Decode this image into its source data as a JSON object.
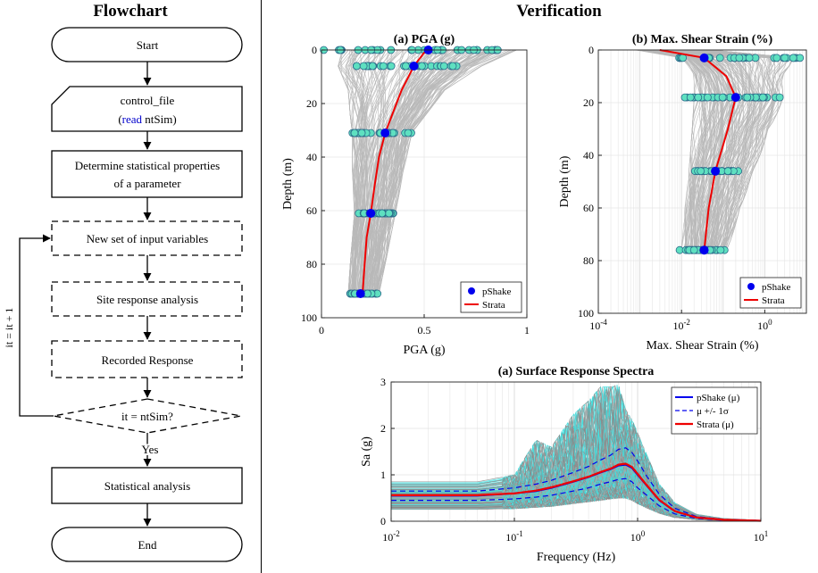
{
  "flowchart": {
    "title": "Flowchart",
    "start": "Start",
    "control_file": "control_file",
    "read_kw": "read",
    "read_var": " ntSim)",
    "determine_line1": "Determine statistical properties",
    "determine_line2": "of a parameter",
    "new_set": "New set of input variables",
    "site_response": "Site response analysis",
    "recorded": "Recorded Response",
    "decision": "it = ntSim?",
    "yes": "Yes",
    "loop_label": "it = it + 1",
    "statistical": "Statistical analysis",
    "end": "End"
  },
  "verification": {
    "title": "Verification"
  },
  "colors": {
    "pshake": "#0000ee",
    "strata": "#ee0000",
    "marker_fill": "#5ee0c0",
    "sim": "#b8b8b8",
    "sim_dark": "#8a8a8a",
    "cyan": "#3ce0e0",
    "keyword": "#0000cc"
  },
  "chart_data": [
    {
      "type": "line",
      "title": "(a) PGA (g)",
      "xlabel": "PGA (g)",
      "ylabel": "Depth (m)",
      "xlim": [
        0,
        1
      ],
      "ylim": [
        0,
        100
      ],
      "y_reversed": true,
      "xticks": [
        "0",
        "0.5",
        "1"
      ],
      "yticks": [
        "0",
        "20",
        "40",
        "60",
        "80",
        "100"
      ],
      "legend": [
        "pShake",
        "Strata"
      ],
      "legend_position": "bottom-right",
      "pshake_mean": {
        "depth": [
          0,
          6,
          31,
          61,
          91
        ],
        "value": [
          0.52,
          0.45,
          0.31,
          0.24,
          0.19
        ]
      },
      "pshake_spread": [
        {
          "depth": 0,
          "min": 0.0,
          "max": 0.86
        },
        {
          "depth": 6,
          "min": 0.15,
          "max": 0.66
        },
        {
          "depth": 31,
          "min": 0.15,
          "max": 0.45
        },
        {
          "depth": 61,
          "min": 0.18,
          "max": 0.35
        },
        {
          "depth": 91,
          "min": 0.14,
          "max": 0.28
        }
      ],
      "strata_mean": {
        "depth": [
          0,
          6,
          15,
          25,
          31,
          40,
          50,
          61,
          70,
          80,
          91
        ],
        "value": [
          0.51,
          0.45,
          0.39,
          0.34,
          0.31,
          0.28,
          0.26,
          0.24,
          0.22,
          0.21,
          0.2
        ]
      },
      "sim_envelope": {
        "depth": [
          0,
          6,
          15,
          25,
          31,
          45,
          61,
          80,
          91
        ],
        "min": [
          0.1,
          0.08,
          0.13,
          0.14,
          0.15,
          0.15,
          0.16,
          0.14,
          0.13
        ],
        "max": [
          0.95,
          0.78,
          0.6,
          0.5,
          0.44,
          0.4,
          0.36,
          0.31,
          0.28
        ]
      }
    },
    {
      "type": "line",
      "title": "(b) Max. Shear Strain (%)",
      "xlabel": "Max. Shear Strain (%)",
      "ylabel": "Depth (m)",
      "xscale": "log",
      "xlim": [
        0.0001,
        10
      ],
      "ylim": [
        0,
        100
      ],
      "y_reversed": true,
      "xticks": [
        "10^-4",
        "10^-2",
        "10^0"
      ],
      "yticks": [
        "0",
        "20",
        "40",
        "60",
        "80",
        "100"
      ],
      "legend": [
        "pShake",
        "Strata"
      ],
      "legend_position": "bottom-right",
      "pshake_mean": {
        "depth": [
          3,
          18,
          46,
          76
        ],
        "value": [
          0.035,
          0.2,
          0.065,
          0.035
        ]
      },
      "pshake_spread": [
        {
          "depth": 3,
          "min": 0.008,
          "max": 7
        },
        {
          "depth": 18,
          "min": 0.012,
          "max": 2.8
        },
        {
          "depth": 46,
          "min": 0.02,
          "max": 0.25
        },
        {
          "depth": 76,
          "min": 0.008,
          "max": 0.11
        }
      ],
      "strata_mean": {
        "depth": [
          0,
          3,
          10,
          18,
          30,
          46,
          60,
          76
        ],
        "value": [
          0.003,
          0.035,
          0.12,
          0.2,
          0.13,
          0.065,
          0.045,
          0.035
        ]
      },
      "sim_envelope": {
        "depth": [
          0,
          3,
          10,
          18,
          30,
          46,
          60,
          76
        ],
        "min": [
          0.0008,
          0.01,
          0.02,
          0.02,
          0.018,
          0.015,
          0.012,
          0.01
        ],
        "max": [
          0.05,
          5,
          2.5,
          2.8,
          1.2,
          0.5,
          0.25,
          0.12
        ]
      }
    },
    {
      "type": "line",
      "title": "(a) Surface Response Spectra",
      "xlabel": "Frequency (Hz)",
      "ylabel": "Sa (g)",
      "xscale": "log",
      "xlim": [
        0.01,
        10
      ],
      "ylim": [
        0,
        3
      ],
      "xticks": [
        "10^-2",
        "10^-1",
        "10^0",
        "10^1"
      ],
      "yticks": [
        "0",
        "1",
        "2",
        "3"
      ],
      "legend": [
        "pShake (μ)",
        "μ +/- 1σ",
        "Strata (μ)"
      ],
      "legend_position": "top-right",
      "freq": [
        0.01,
        0.05,
        0.1,
        0.15,
        0.2,
        0.3,
        0.4,
        0.5,
        0.6,
        0.7,
        0.8,
        0.9,
        1.0,
        1.2,
        1.5,
        2,
        3,
        5,
        10
      ],
      "pshake_mean": [
        0.55,
        0.55,
        0.6,
        0.65,
        0.72,
        0.85,
        0.95,
        1.05,
        1.12,
        1.2,
        1.22,
        1.15,
        1.0,
        0.75,
        0.45,
        0.22,
        0.08,
        0.03,
        0.01
      ],
      "plus_sigma": [
        0.65,
        0.65,
        0.72,
        0.8,
        0.88,
        1.05,
        1.18,
        1.32,
        1.42,
        1.55,
        1.58,
        1.48,
        1.3,
        0.95,
        0.58,
        0.28,
        0.1,
        0.04,
        0.01
      ],
      "minus_sigma": [
        0.45,
        0.45,
        0.48,
        0.52,
        0.56,
        0.65,
        0.72,
        0.8,
        0.85,
        0.9,
        0.92,
        0.85,
        0.72,
        0.55,
        0.33,
        0.16,
        0.06,
        0.02,
        0.005
      ],
      "strata_mean": [
        0.56,
        0.56,
        0.6,
        0.66,
        0.73,
        0.86,
        0.96,
        1.06,
        1.13,
        1.22,
        1.24,
        1.17,
        1.02,
        0.76,
        0.46,
        0.22,
        0.08,
        0.03,
        0.01
      ],
      "sim_max": [
        0.85,
        0.85,
        1.0,
        1.75,
        1.6,
        2.3,
        2.6,
        2.9,
        2.9,
        2.95,
        2.4,
        2.2,
        1.9,
        1.4,
        0.8,
        0.4,
        0.15,
        0.06,
        0.02
      ],
      "sim_min": [
        0.25,
        0.25,
        0.27,
        0.3,
        0.32,
        0.38,
        0.42,
        0.45,
        0.48,
        0.5,
        0.5,
        0.45,
        0.38,
        0.28,
        0.17,
        0.08,
        0.03,
        0.01,
        0.002
      ]
    }
  ]
}
